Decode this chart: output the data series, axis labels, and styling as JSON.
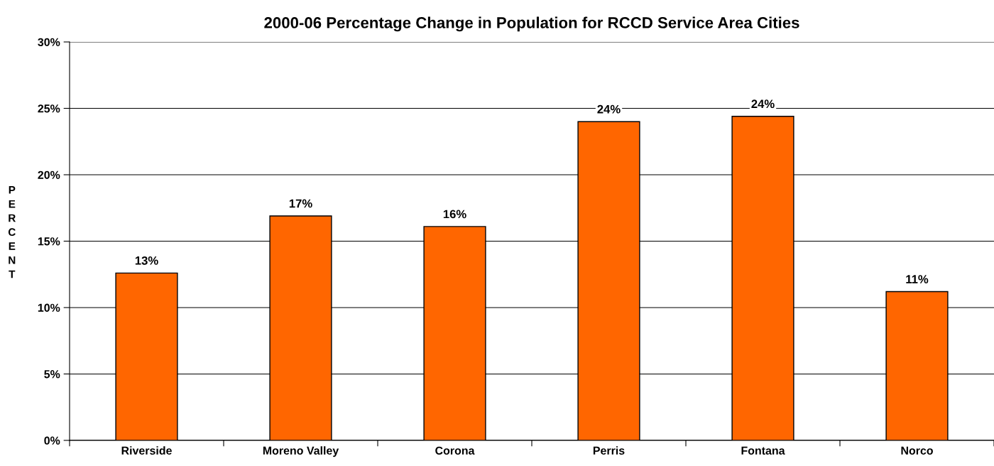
{
  "chart_data": {
    "type": "bar",
    "title": "2000-06 Percentage Change in Population for RCCD Service Area Cities",
    "ylabel": "PERCENT",
    "categories": [
      "Riverside",
      "Moreno Valley",
      "Corona",
      "Perris",
      "Fontana",
      "Norco"
    ],
    "values": [
      12.6,
      16.9,
      16.1,
      24.0,
      24.4,
      11.2
    ],
    "value_labels": [
      "13%",
      "17%",
      "16%",
      "24%",
      "24%",
      "11%"
    ],
    "color": "#ff6600",
    "ylim": [
      0,
      30
    ],
    "yticks": [
      {
        "value": 0,
        "label": "0%"
      },
      {
        "value": 5,
        "label": "5%"
      },
      {
        "value": 10,
        "label": "10%"
      },
      {
        "value": 15,
        "label": "15%"
      },
      {
        "value": 20,
        "label": "20%"
      },
      {
        "value": 25,
        "label": "25%"
      },
      {
        "value": 30,
        "label": "30%"
      }
    ],
    "grid": "y"
  }
}
